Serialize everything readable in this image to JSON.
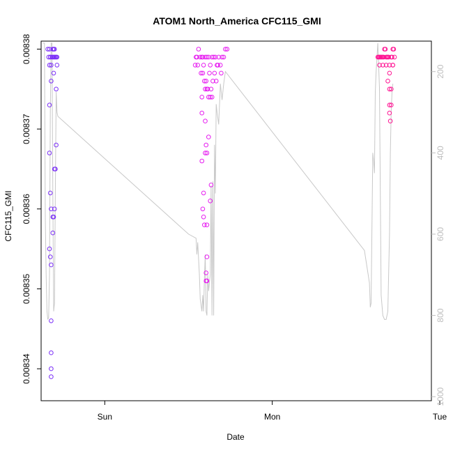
{
  "chart_data": {
    "type": "scatter",
    "title": "ATOM1 North_America CFC115_GMI",
    "xlabel": "Date",
    "ylabel": "CFC115_GMI",
    "x_ticks": [
      "Sun",
      "Mon",
      "Tue"
    ],
    "y_ticks": [
      "0.00834",
      "0.00835",
      "0.00836",
      "0.00837",
      "0.00838"
    ],
    "y2_ticks": [
      "200",
      "400",
      "600",
      "800",
      "1000"
    ],
    "ylim": [
      0.008336,
      0.008381
    ],
    "y2lim": [
      1010,
      125
    ],
    "xlim": [
      -0.38,
      1.95
    ],
    "colors": {
      "early": "#7B2FF7",
      "mid": "#E61CF0",
      "late": "#FF1493",
      "line": "#c8c8c8"
    },
    "series": [
      {
        "color": "#7B2FF7",
        "points": [
          [
            -0.34,
            0.00838
          ],
          [
            -0.33,
            0.00838
          ],
          [
            -0.335,
            0.008379
          ],
          [
            -0.33,
            0.008378
          ],
          [
            -0.325,
            0.008379
          ],
          [
            -0.32,
            0.008378
          ],
          [
            -0.315,
            0.008379
          ],
          [
            -0.31,
            0.00838
          ],
          [
            -0.305,
            0.008379
          ],
          [
            -0.3,
            0.008379
          ],
          [
            -0.295,
            0.008379
          ],
          [
            -0.29,
            0.008379
          ],
          [
            -0.285,
            0.008378
          ],
          [
            -0.31,
            0.008379
          ],
          [
            -0.305,
            0.00838
          ],
          [
            -0.3,
            0.00838
          ],
          [
            -0.325,
            0.008379
          ],
          [
            -0.33,
            0.008373
          ],
          [
            -0.32,
            0.008376
          ],
          [
            -0.305,
            0.008377
          ],
          [
            -0.29,
            0.008375
          ],
          [
            -0.33,
            0.008367
          ],
          [
            -0.325,
            0.008362
          ],
          [
            -0.32,
            0.00836
          ],
          [
            -0.31,
            0.008357
          ],
          [
            -0.33,
            0.008355
          ],
          [
            -0.325,
            0.008354
          ],
          [
            -0.32,
            0.008353
          ],
          [
            -0.31,
            0.008359
          ],
          [
            -0.305,
            0.008359
          ],
          [
            -0.3,
            0.00836
          ],
          [
            -0.3,
            0.008365
          ],
          [
            -0.295,
            0.008365
          ],
          [
            -0.29,
            0.008368
          ],
          [
            -0.32,
            0.008346
          ],
          [
            -0.32,
            0.008342
          ],
          [
            -0.32,
            0.00834
          ],
          [
            -0.32,
            0.008339
          ],
          [
            -0.285,
            0.008379
          ]
        ]
      },
      {
        "color": "#E61CF0",
        "points": [
          [
            0.54,
            0.008378
          ],
          [
            0.55,
            0.008379
          ],
          [
            0.56,
            0.00838
          ],
          [
            0.57,
            0.008379
          ],
          [
            0.58,
            0.008379
          ],
          [
            0.59,
            0.008378
          ],
          [
            0.6,
            0.008379
          ],
          [
            0.61,
            0.008379
          ],
          [
            0.62,
            0.008379
          ],
          [
            0.63,
            0.008378
          ],
          [
            0.64,
            0.008379
          ],
          [
            0.65,
            0.008379
          ],
          [
            0.66,
            0.008379
          ],
          [
            0.67,
            0.008378
          ],
          [
            0.68,
            0.008379
          ],
          [
            0.69,
            0.008378
          ],
          [
            0.7,
            0.008379
          ],
          [
            0.71,
            0.008379
          ],
          [
            0.72,
            0.00838
          ],
          [
            0.73,
            0.00838
          ],
          [
            0.545,
            0.008379
          ],
          [
            0.555,
            0.008378
          ],
          [
            0.575,
            0.008377
          ],
          [
            0.585,
            0.008377
          ],
          [
            0.595,
            0.008376
          ],
          [
            0.605,
            0.008376
          ],
          [
            0.615,
            0.008375
          ],
          [
            0.625,
            0.008377
          ],
          [
            0.635,
            0.008375
          ],
          [
            0.645,
            0.008376
          ],
          [
            0.655,
            0.008377
          ],
          [
            0.665,
            0.008376
          ],
          [
            0.675,
            0.008378
          ],
          [
            0.695,
            0.008377
          ],
          [
            0.58,
            0.008374
          ],
          [
            0.6,
            0.008375
          ],
          [
            0.61,
            0.008375
          ],
          [
            0.62,
            0.008374
          ],
          [
            0.63,
            0.008374
          ],
          [
            0.64,
            0.008374
          ],
          [
            0.58,
            0.008372
          ],
          [
            0.6,
            0.008371
          ],
          [
            0.62,
            0.008369
          ],
          [
            0.605,
            0.008368
          ],
          [
            0.61,
            0.008367
          ],
          [
            0.6,
            0.008367
          ],
          [
            0.58,
            0.008366
          ],
          [
            0.59,
            0.008362
          ],
          [
            0.635,
            0.008363
          ],
          [
            0.63,
            0.008361
          ],
          [
            0.585,
            0.00836
          ],
          [
            0.59,
            0.008359
          ],
          [
            0.595,
            0.008358
          ],
          [
            0.61,
            0.008358
          ],
          [
            0.61,
            0.008354
          ],
          [
            0.605,
            0.008352
          ],
          [
            0.61,
            0.008351
          ],
          [
            0.605,
            0.008351
          ],
          [
            0.585,
            0.008379
          ]
        ]
      },
      {
        "color": "#FF1493",
        "points": [
          [
            1.63,
            0.008379
          ],
          [
            1.64,
            0.008379
          ],
          [
            1.65,
            0.008379
          ],
          [
            1.66,
            0.008379
          ],
          [
            1.67,
            0.00838
          ],
          [
            1.68,
            0.008379
          ],
          [
            1.69,
            0.008379
          ],
          [
            1.7,
            0.008378
          ],
          [
            1.71,
            0.008379
          ],
          [
            1.72,
            0.00838
          ],
          [
            1.73,
            0.008379
          ],
          [
            1.635,
            0.008379
          ],
          [
            1.645,
            0.008379
          ],
          [
            1.655,
            0.008379
          ],
          [
            1.665,
            0.008379
          ],
          [
            1.675,
            0.00838
          ],
          [
            1.685,
            0.008379
          ],
          [
            1.695,
            0.008379
          ],
          [
            1.715,
            0.008379
          ],
          [
            1.725,
            0.00838
          ],
          [
            1.64,
            0.008378
          ],
          [
            1.66,
            0.008378
          ],
          [
            1.68,
            0.008378
          ],
          [
            1.7,
            0.008377
          ],
          [
            1.72,
            0.008378
          ],
          [
            1.69,
            0.008376
          ],
          [
            1.7,
            0.008375
          ],
          [
            1.71,
            0.008375
          ],
          [
            1.7,
            0.008373
          ],
          [
            1.71,
            0.008373
          ],
          [
            1.705,
            0.008371
          ],
          [
            1.7,
            0.008372
          ],
          [
            1.72,
            0.008378
          ]
        ]
      }
    ],
    "line_pressure": [
      [
        -0.37,
        130
      ],
      [
        -0.36,
        130
      ],
      [
        -0.355,
        560
      ],
      [
        -0.35,
        700
      ],
      [
        -0.345,
        790
      ],
      [
        -0.34,
        810
      ],
      [
        -0.335,
        805
      ],
      [
        -0.33,
        700
      ],
      [
        -0.325,
        300
      ],
      [
        -0.32,
        130
      ],
      [
        -0.315,
        130
      ],
      [
        -0.31,
        500
      ],
      [
        -0.305,
        790
      ],
      [
        -0.3,
        770
      ],
      [
        -0.295,
        500
      ],
      [
        -0.29,
        250
      ],
      [
        -0.285,
        300
      ],
      [
        -0.28,
        310
      ],
      [
        0.5,
        600
      ],
      [
        0.545,
        610
      ],
      [
        0.55,
        650
      ],
      [
        0.555,
        620
      ],
      [
        0.56,
        660
      ],
      [
        0.565,
        700
      ],
      [
        0.57,
        760
      ],
      [
        0.58,
        790
      ],
      [
        0.585,
        750
      ],
      [
        0.59,
        790
      ],
      [
        0.595,
        710
      ],
      [
        0.6,
        650
      ],
      [
        0.605,
        790
      ],
      [
        0.61,
        800
      ],
      [
        0.615,
        700
      ],
      [
        0.62,
        740
      ],
      [
        0.625,
        720
      ],
      [
        0.63,
        700
      ],
      [
        0.635,
        480
      ],
      [
        0.64,
        800
      ],
      [
        0.645,
        470
      ],
      [
        0.65,
        800
      ],
      [
        0.655,
        380
      ],
      [
        0.66,
        500
      ],
      [
        0.665,
        280
      ],
      [
        0.67,
        300
      ],
      [
        0.68,
        330
      ],
      [
        0.69,
        230
      ],
      [
        0.7,
        270
      ],
      [
        0.71,
        230
      ],
      [
        0.72,
        200
      ],
      [
        1.55,
        640
      ],
      [
        1.58,
        720
      ],
      [
        1.585,
        780
      ],
      [
        1.59,
        770
      ],
      [
        1.6,
        400
      ],
      [
        1.605,
        420
      ],
      [
        1.61,
        450
      ],
      [
        1.615,
        250
      ],
      [
        1.62,
        200
      ],
      [
        1.63,
        130
      ],
      [
        1.64,
        240
      ],
      [
        1.65,
        750
      ],
      [
        1.66,
        800
      ],
      [
        1.67,
        810
      ],
      [
        1.68,
        810
      ],
      [
        1.69,
        790
      ],
      [
        1.7,
        600
      ],
      [
        1.705,
        400
      ],
      [
        1.71,
        300
      ],
      [
        1.715,
        250
      ],
      [
        1.72,
        230
      ]
    ]
  }
}
